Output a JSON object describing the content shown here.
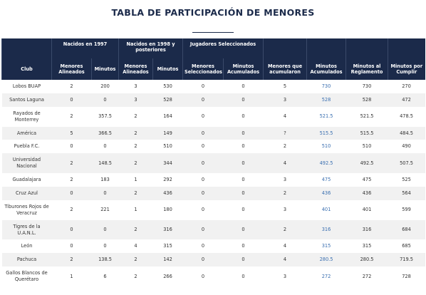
{
  "header": {
    "title": "TABLA DE PARTICIPACIÓN DE MENORES"
  },
  "table": {
    "group_headers": [
      "Nacidos en 1997",
      "Nacidos en 1998 y posteriores",
      "Jugadores Seleccionados"
    ],
    "headers": [
      "Club",
      "Menores Alineados",
      "Minutos",
      "Menores Alineados",
      "Minutos",
      "Menores Seleccionados",
      "Minutos Acumulados",
      "Menores que acumularon",
      "Minutos Acumulados",
      "Minutos al Reglamento",
      "Minutos por Cumplir"
    ],
    "rows": [
      [
        "Lobos BUAP",
        2,
        200,
        3,
        530,
        0,
        0,
        5,
        730,
        730,
        270
      ],
      [
        "Santos Laguna",
        0,
        0,
        3,
        528,
        0,
        0,
        3,
        528,
        528,
        472
      ],
      [
        "Rayados de Monterrey",
        2,
        357.5,
        2,
        164,
        0,
        0,
        4,
        521.5,
        521.5,
        478.5
      ],
      [
        "América",
        5,
        366.5,
        2,
        149,
        0,
        0,
        "?",
        515.5,
        515.5,
        484.5
      ],
      [
        "Puebla F.C.",
        0,
        0,
        2,
        510,
        0,
        0,
        2,
        510,
        510,
        490
      ],
      [
        "Universidad Nacional",
        2,
        148.5,
        2,
        344,
        0,
        0,
        4,
        492.5,
        492.5,
        507.5
      ],
      [
        "Guadalajara",
        2,
        183,
        1,
        292,
        0,
        0,
        3,
        475,
        475,
        525
      ],
      [
        "Cruz Azul",
        0,
        0,
        2,
        436,
        0,
        0,
        2,
        436,
        436,
        564
      ],
      [
        "Tiburones Rojos de Veracruz",
        2,
        221,
        1,
        180,
        0,
        0,
        3,
        401,
        401,
        599
      ],
      [
        "Tigres de la U.A.N.L.",
        0,
        0,
        2,
        316,
        0,
        0,
        2,
        316,
        316,
        684
      ],
      [
        "León",
        0,
        0,
        4,
        315,
        0,
        0,
        4,
        315,
        315,
        685
      ],
      [
        "Pachuca",
        2,
        138.5,
        2,
        142,
        0,
        0,
        4,
        280.5,
        280.5,
        719.5
      ],
      [
        "Gallos Blancos de Querétaro",
        1,
        6,
        2,
        266,
        0,
        0,
        3,
        272,
        272,
        728
      ]
    ]
  }
}
